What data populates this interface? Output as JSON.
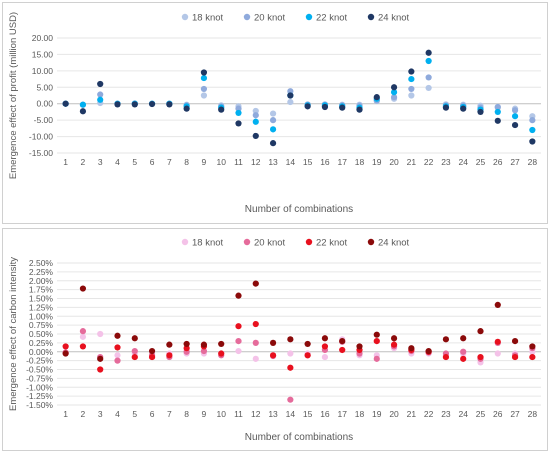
{
  "chart_data": [
    {
      "type": "scatter",
      "title": "",
      "xlabel": "Number of combinations",
      "ylabel": "Emergence effect of profit (million USD)",
      "x": [
        1,
        2,
        3,
        4,
        5,
        6,
        7,
        8,
        9,
        10,
        11,
        12,
        13,
        14,
        15,
        16,
        17,
        18,
        19,
        20,
        21,
        22,
        23,
        24,
        25,
        26,
        27,
        28
      ],
      "ylim": [
        -15,
        20
      ],
      "yticks": [
        -15,
        -10,
        -5,
        0,
        5,
        10,
        15,
        20
      ],
      "ytick_labels": [
        "-15.00",
        "-10.00",
        "-5.00",
        "0.00",
        "5.00",
        "10.00",
        "15.00",
        "20.00"
      ],
      "grid": "horizontal",
      "legend": "top",
      "series": [
        {
          "name": "18 knot",
          "color": "#b4c7e7",
          "values": [
            0,
            -0.3,
            0.2,
            0,
            0.1,
            0,
            0,
            -0.3,
            2.5,
            -0.5,
            -0.8,
            -2.2,
            -3.0,
            0.5,
            -0.2,
            -0.2,
            -0.3,
            -0.3,
            0.8,
            1.5,
            2.5,
            4.8,
            -0.2,
            -0.3,
            -0.6,
            -1.2,
            -1.5,
            -3.8
          ]
        },
        {
          "name": "20 knot",
          "color": "#8faadc",
          "values": [
            0,
            -0.3,
            2.8,
            0,
            0,
            0,
            0,
            -0.5,
            4.5,
            -0.8,
            -1.5,
            -3.5,
            -5.0,
            3.8,
            -0.3,
            -0.3,
            -0.5,
            -0.6,
            1.0,
            2.0,
            4.5,
            8.0,
            -0.5,
            -0.6,
            -1.2,
            -1.0,
            -2.0,
            -5.0
          ]
        },
        {
          "name": "22 knot",
          "color": "#00b0f0",
          "values": [
            0,
            -0.3,
            1.2,
            0,
            0,
            0,
            0,
            -0.8,
            7.8,
            -1.2,
            -2.8,
            -5.5,
            -7.8,
            2.5,
            -0.5,
            -0.5,
            -0.8,
            -1.2,
            1.5,
            3.5,
            7.5,
            13.0,
            -0.8,
            -1.0,
            -1.8,
            -2.5,
            -3.8,
            -8.0
          ]
        },
        {
          "name": "24 knot",
          "color": "#1f3864",
          "values": [
            0,
            -2.3,
            6.0,
            -0.2,
            -0.2,
            -0.1,
            -0.2,
            -1.5,
            9.5,
            -1.8,
            -6.0,
            -9.8,
            -12.0,
            2.5,
            -0.8,
            -1.0,
            -1.2,
            -1.8,
            2.0,
            5.0,
            9.8,
            15.5,
            -1.2,
            -1.5,
            -2.5,
            -5.2,
            -6.5,
            -11.5
          ]
        }
      ]
    },
    {
      "type": "scatter",
      "title": "",
      "xlabel": "Number of combinations",
      "ylabel": "Emergence effect of carbon intensity",
      "x": [
        1,
        2,
        3,
        4,
        5,
        6,
        7,
        8,
        9,
        10,
        11,
        12,
        13,
        14,
        15,
        16,
        17,
        18,
        19,
        20,
        21,
        22,
        23,
        24,
        25,
        26,
        27,
        28
      ],
      "ylim": [
        -1.5,
        2.5
      ],
      "yticks": [
        -1.5,
        -1.25,
        -1.0,
        -0.75,
        -0.5,
        -0.25,
        0,
        0.25,
        0.5,
        0.75,
        1.0,
        1.25,
        1.5,
        1.75,
        2.0,
        2.25,
        2.5
      ],
      "ytick_labels": [
        "-1.50%",
        "-1.25%",
        "-1.00%",
        "-0.75%",
        "-0.50%",
        "-0.25%",
        "0.00%",
        "0.25%",
        "0.50%",
        "0.75%",
        "1.00%",
        "1.25%",
        "1.50%",
        "1.75%",
        "2.00%",
        "2.25%",
        "2.50%"
      ],
      "grid": "horizontal",
      "legend": "top",
      "series": [
        {
          "name": "18 knot",
          "color": "#f4c2e8",
          "values": [
            -0.05,
            0.42,
            0.5,
            -0.1,
            -0.05,
            -0.05,
            -0.05,
            -0.05,
            -0.05,
            -0.05,
            0.02,
            -0.2,
            -0.1,
            -0.05,
            -0.05,
            -0.15,
            0.35,
            -0.1,
            -0.1,
            0.1,
            -0.05,
            -0.05,
            -0.1,
            -0.05,
            -0.3,
            -0.05,
            -0.05,
            0
          ]
        },
        {
          "name": "20 knot",
          "color": "#e56b9b",
          "values": [
            -0.02,
            0.58,
            -0.15,
            -0.25,
            0.02,
            -0.1,
            -0.15,
            0,
            0.02,
            -0.1,
            0.3,
            0.25,
            -0.12,
            -1.35,
            -0.1,
            0.05,
            0.28,
            -0.05,
            -0.2,
            0.15,
            0.02,
            -0.02,
            -0.05,
            0,
            -0.2,
            0.25,
            -0.1,
            0.1
          ]
        },
        {
          "name": "22 knot",
          "color": "#e8101e",
          "values": [
            0.15,
            0.15,
            -0.5,
            0.12,
            -0.15,
            -0.15,
            -0.1,
            0.1,
            0.15,
            -0.05,
            0.72,
            0.78,
            -0.1,
            -0.45,
            -0.1,
            0.15,
            0.05,
            0.05,
            0.3,
            0.2,
            0.05,
            0,
            -0.15,
            -0.2,
            -0.15,
            0.28,
            -0.15,
            -0.15
          ]
        },
        {
          "name": "24 knot",
          "color": "#8b0a0a",
          "values": [
            -0.05,
            1.78,
            -0.2,
            0.45,
            0.38,
            0.02,
            0.2,
            0.22,
            0.2,
            0.22,
            1.58,
            1.92,
            0.25,
            0.35,
            0.22,
            0.38,
            0.3,
            0.15,
            0.48,
            0.38,
            0.1,
            0.02,
            0.35,
            0.38,
            0.58,
            1.32,
            0.3,
            0.15
          ]
        }
      ]
    }
  ]
}
